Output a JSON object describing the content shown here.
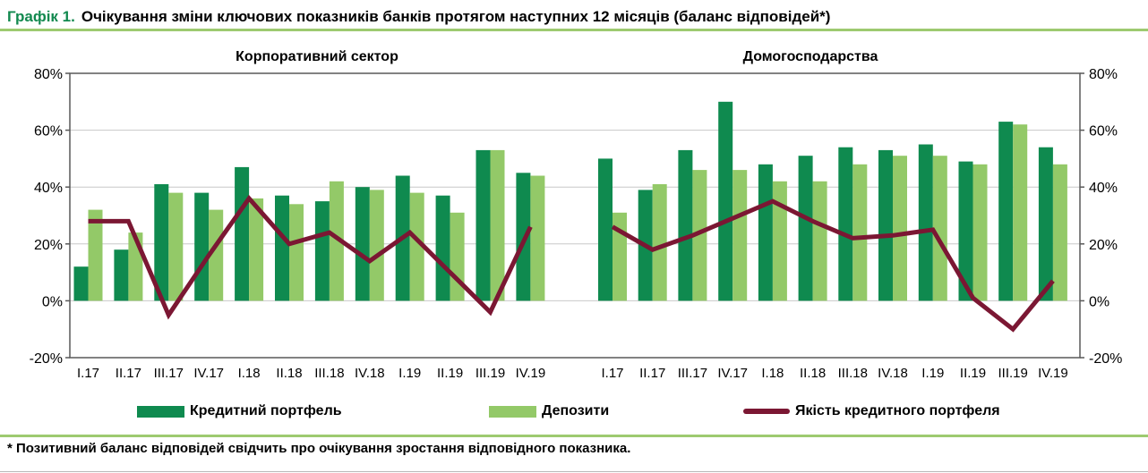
{
  "page": {
    "title_prefix": "Графік 1.",
    "title_text": "Очікування зміни ключових показників банків протягом наступних 12 місяців (баланс відповідей*)",
    "footnote": "* Позитивний баланс відповідей свідчить про очікування зростання відповідного показника."
  },
  "chart_data": {
    "type": "bar",
    "subtype": "grouped bars with overlay line, two panels sharing one y-axis",
    "categories": [
      "I.17",
      "II.17",
      "III.17",
      "IV.17",
      "I.18",
      "II.18",
      "III.18",
      "IV.18",
      "I.19",
      "II.19",
      "III.19",
      "IV.19"
    ],
    "y_axis": {
      "ticks": [
        80,
        60,
        40,
        20,
        0,
        -20
      ],
      "suffix": "%",
      "ylim": [
        -20,
        80
      ],
      "grid": true
    },
    "colors": {
      "loan_portfolio": "#0f8a4f",
      "deposits": "#93c968",
      "loan_quality": "#7b1733",
      "grid": "#c8c8c8",
      "frame": "#595959",
      "accent_rule": "#9dca70",
      "title_accent": "#12894f"
    },
    "panels": [
      {
        "title": "Корпоративний сектор",
        "series": [
          {
            "name": "Кредитний портфель",
            "type": "bar",
            "color_key": "loan_portfolio",
            "values": [
              12,
              18,
              41,
              38,
              47,
              37,
              35,
              40,
              44,
              37,
              53,
              45
            ]
          },
          {
            "name": "Депозити",
            "type": "bar",
            "color_key": "deposits",
            "values": [
              32,
              24,
              38,
              32,
              36,
              34,
              42,
              39,
              38,
              31,
              53,
              44
            ]
          },
          {
            "name": "Якість кредитного портфеля",
            "type": "line",
            "color_key": "loan_quality",
            "values": [
              28,
              28,
              -5,
              16,
              36,
              20,
              24,
              14,
              24,
              10,
              -4,
              26
            ]
          }
        ]
      },
      {
        "title": "Домогосподарства",
        "series": [
          {
            "name": "Кредитний портфель",
            "type": "bar",
            "color_key": "loan_portfolio",
            "values": [
              50,
              39,
              53,
              70,
              48,
              51,
              54,
              53,
              55,
              49,
              63,
              54
            ]
          },
          {
            "name": "Депозити",
            "type": "bar",
            "color_key": "deposits",
            "values": [
              31,
              41,
              46,
              46,
              42,
              42,
              48,
              51,
              51,
              48,
              62,
              48
            ]
          },
          {
            "name": "Якість кредитного портфеля",
            "type": "line",
            "color_key": "loan_quality",
            "values": [
              26,
              18,
              23,
              29,
              35,
              28,
              22,
              23,
              25,
              1,
              -10,
              7
            ]
          }
        ]
      }
    ],
    "legend": [
      {
        "label": "Кредитний портфель",
        "swatch": "bar",
        "color_key": "loan_portfolio"
      },
      {
        "label": "Депозити",
        "swatch": "bar",
        "color_key": "deposits"
      },
      {
        "label": "Якість кредитного портфеля",
        "swatch": "line",
        "color_key": "loan_quality"
      }
    ]
  }
}
